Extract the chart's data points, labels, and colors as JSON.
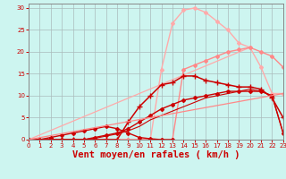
{
  "background_color": "#cdf5f0",
  "grid_color": "#aabbbb",
  "xlabel": "Vent moyen/en rafales ( km/h )",
  "xlabel_color": "#cc0000",
  "xlabel_fontsize": 7.5,
  "tick_color": "#cc0000",
  "xlim": [
    0,
    23
  ],
  "ylim": [
    0,
    31
  ],
  "yticks": [
    0,
    5,
    10,
    15,
    20,
    25,
    30
  ],
  "xticks": [
    0,
    1,
    2,
    3,
    4,
    5,
    6,
    7,
    8,
    9,
    10,
    11,
    12,
    13,
    14,
    15,
    16,
    17,
    18,
    19,
    20,
    21,
    22,
    23
  ],
  "series": [
    {
      "x": [
        0,
        20
      ],
      "y": [
        0,
        21
      ],
      "color": "#ffaaaa",
      "lw": 0.9,
      "marker": null,
      "alpha": 1.0
    },
    {
      "x": [
        0,
        1,
        2,
        3,
        4,
        5,
        6,
        7,
        8,
        9,
        10,
        11,
        12,
        13,
        14,
        15,
        16,
        17,
        18,
        19,
        20,
        21,
        22,
        23
      ],
      "y": [
        0,
        0,
        0,
        0,
        0,
        0,
        0,
        0,
        0,
        0,
        0,
        0,
        16,
        26.5,
        29.5,
        30,
        29,
        27,
        25,
        22,
        21,
        16.5,
        10.5,
        10.5
      ],
      "color": "#ffaaaa",
      "lw": 1.0,
      "marker": "D",
      "marker_size": 2.0,
      "alpha": 1.0
    },
    {
      "x": [
        0,
        1,
        2,
        3,
        4,
        5,
        6,
        7,
        8,
        9,
        10,
        11,
        12,
        13,
        14,
        15,
        16,
        17,
        18,
        19,
        20,
        21,
        22,
        23
      ],
      "y": [
        0,
        0,
        0,
        0,
        0,
        0,
        0,
        0,
        0,
        0,
        0,
        0,
        0,
        0,
        16,
        17,
        18,
        19,
        20,
        20.5,
        21,
        20,
        19,
        16.5
      ],
      "color": "#ff8888",
      "lw": 1.0,
      "marker": "D",
      "marker_size": 2.0,
      "alpha": 1.0
    },
    {
      "x": [
        0,
        1,
        2,
        3,
        4,
        5,
        6,
        7,
        8,
        9,
        10,
        11,
        12,
        13,
        14,
        15,
        16,
        17,
        18,
        19,
        20,
        21,
        22,
        23
      ],
      "y": [
        0,
        0,
        0,
        0,
        0,
        0,
        0,
        0,
        0,
        4,
        7.5,
        10,
        12.5,
        13,
        14.5,
        14.5,
        13.5,
        13,
        12.5,
        12,
        12,
        11.5,
        9.5,
        5
      ],
      "color": "#cc0000",
      "lw": 1.1,
      "marker": "+",
      "marker_size": 4.0,
      "alpha": 1.0
    },
    {
      "x": [
        0,
        1,
        2,
        3,
        4,
        5,
        6,
        7,
        8,
        9,
        10,
        11,
        12,
        13,
        14,
        15,
        16,
        17,
        18,
        19,
        20,
        21,
        22,
        23
      ],
      "y": [
        0,
        0,
        0,
        0,
        0,
        0,
        0.5,
        1,
        1.5,
        2.5,
        4,
        5.5,
        7,
        8,
        9,
        9.5,
        10,
        10.5,
        11,
        11,
        11,
        11,
        10,
        1.5
      ],
      "color": "#cc0000",
      "lw": 1.0,
      "marker": "D",
      "marker_size": 2.0,
      "alpha": 1.0
    },
    {
      "x": [
        0,
        1,
        2,
        3,
        4,
        5,
        6,
        7,
        8,
        9,
        10,
        11,
        12,
        13,
        14,
        15,
        16,
        17,
        18,
        19,
        20,
        21,
        22,
        23
      ],
      "y": [
        0,
        0,
        0,
        0,
        0,
        0,
        0.3,
        0.8,
        1.3,
        2,
        3,
        4.5,
        5.5,
        6.5,
        7.5,
        8.5,
        9.5,
        10,
        10.5,
        11,
        11.5,
        11,
        10,
        1.5
      ],
      "color": "#cc0000",
      "lw": 0.8,
      "marker": null,
      "alpha": 1.0
    },
    {
      "x": [
        0,
        1,
        2,
        3,
        4,
        5,
        6,
        7,
        8,
        9,
        10,
        11,
        12,
        13
      ],
      "y": [
        0,
        0,
        0.5,
        1,
        1.5,
        2,
        2.5,
        3,
        2.5,
        1.5,
        0.5,
        0.2,
        0,
        0
      ],
      "color": "#cc0000",
      "lw": 1.0,
      "marker": "D",
      "marker_size": 2.0,
      "alpha": 1.0
    },
    {
      "x": [
        0,
        23
      ],
      "y": [
        0,
        10.5
      ],
      "color": "#ff8888",
      "lw": 0.9,
      "marker": null,
      "alpha": 1.0
    }
  ]
}
